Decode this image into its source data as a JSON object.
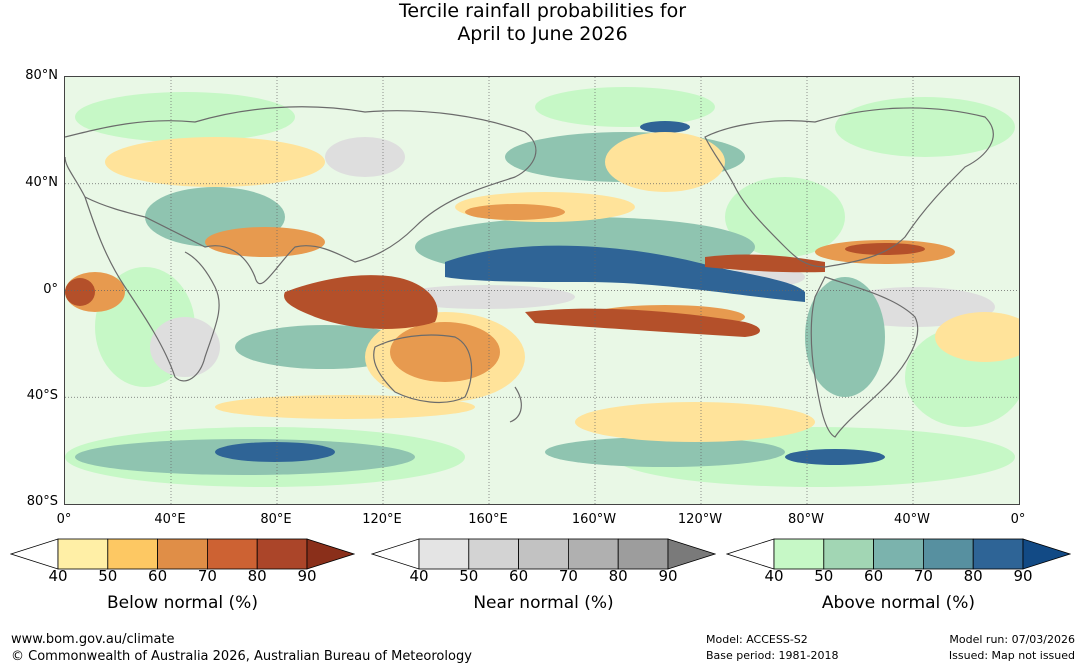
{
  "title_line1": "Tercile rainfall probabilities for",
  "title_line2": "April to June 2026",
  "lat_labels": [
    "80°N",
    "40°N",
    "0°",
    "40°S",
    "80°S"
  ],
  "lon_labels": [
    "0°",
    "40°E",
    "80°E",
    "120°E",
    "160°E",
    "160°W",
    "120°W",
    "80°W",
    "40°W",
    "0°"
  ],
  "colorbars": [
    {
      "name": "below",
      "title": "Below normal (%)",
      "ticks": [
        "40",
        "50",
        "60",
        "70",
        "80",
        "90"
      ],
      "colors": [
        "#ffffff",
        "#ffefa6",
        "#fdc863",
        "#e08e47",
        "#cd6233",
        "#ab4529",
        "#8a2f1a"
      ]
    },
    {
      "name": "near",
      "title": "Near normal (%)",
      "ticks": [
        "40",
        "50",
        "60",
        "70",
        "80",
        "90"
      ],
      "colors": [
        "#ffffff",
        "#e4e4e4",
        "#d3d3d3",
        "#c2c2c2",
        "#b0b0b0",
        "#9d9d9d",
        "#7a7a7a"
      ]
    },
    {
      "name": "above",
      "title": "Above normal (%)",
      "ticks": [
        "40",
        "50",
        "60",
        "70",
        "80",
        "90"
      ],
      "colors": [
        "#ffffff",
        "#c6f8c6",
        "#a2d6b4",
        "#7bb3ad",
        "#5790a0",
        "#2e6496",
        "#124a85"
      ]
    }
  ],
  "footer": {
    "website": "www.bom.gov.au/climate",
    "copyright": "© Commonwealth of Australia 2026, Australian Bureau of Meteorology",
    "model": "Model: ACCESS-S2",
    "base_period": "Base period: 1981-2018",
    "model_run": "Model run: 07/03/2026",
    "issued": "Issued: Map not issued"
  }
}
